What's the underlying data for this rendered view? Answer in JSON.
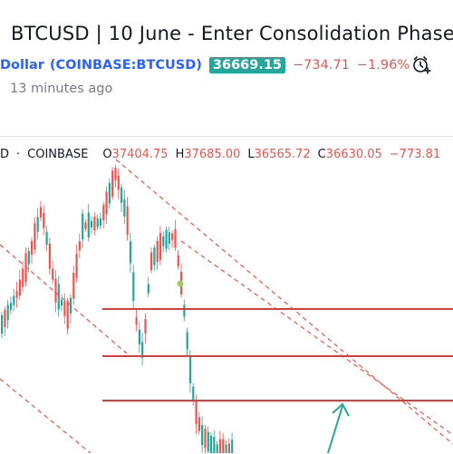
{
  "idea": {
    "title": "BTCUSD | 10 June - Enter Consolidation Phase",
    "symbol_name": "Dollar",
    "symbol_exchange": "(COINBASE:BTCUSD)",
    "price": "36669.15",
    "change": "−734.71",
    "change_pct": "−1.96%",
    "published": "13 minutes ago"
  },
  "legend": {
    "prefix": "D",
    "exchange": "COINBASE",
    "open_label": "O",
    "open_value": "37404.75",
    "high_label": "H",
    "high_value": "37685.00",
    "low_label": "L",
    "low_value": "36565.72",
    "close_label": "C",
    "close_value": "36630.05",
    "change": "−773.81"
  },
  "colors": {
    "up": "#26a69a",
    "down": "#ef5350",
    "accent": "#2962ff",
    "annotation_lines": "#e53935",
    "arrow": "#26a69a",
    "marker_dot": "#9ccc65"
  },
  "icons": {
    "alarm": "add-alert-icon"
  }
}
